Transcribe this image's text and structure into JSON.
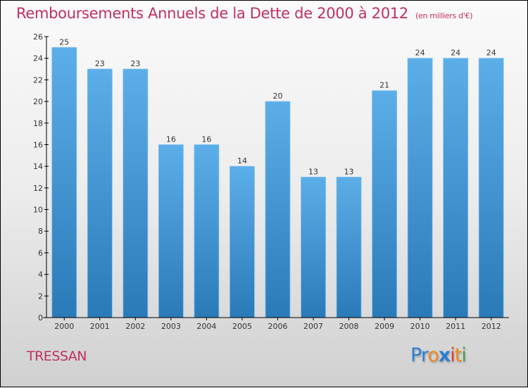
{
  "title": "Remboursements Annuels de la Dette de 2000 à 2012",
  "subtitle": "(en milliers d'€)",
  "city": "TRESSAN",
  "logo": {
    "letters": [
      {
        "ch": "P",
        "color": "#2a7fd4"
      },
      {
        "ch": "r",
        "color": "#2a7fd4"
      },
      {
        "ch": "o",
        "color": "#f08a1c"
      },
      {
        "ch": "x",
        "color": "#2a7fd4"
      },
      {
        "ch": "i",
        "color": "#e53b2c"
      },
      {
        "ch": "t",
        "color": "#f08a1c"
      },
      {
        "ch": "i",
        "color": "#3aa64a"
      }
    ]
  },
  "colors": {
    "bar_top": "#5caee8",
    "bar_bottom": "#2a7ab8",
    "accent": "#c0305e"
  },
  "chart_data": {
    "type": "bar",
    "title": "Remboursements Annuels de la Dette de 2000 à 2012",
    "subtitle": "(en milliers d'€)",
    "categories": [
      "2000",
      "2001",
      "2002",
      "2003",
      "2004",
      "2005",
      "2006",
      "2007",
      "2008",
      "2009",
      "2010",
      "2011",
      "2012"
    ],
    "values": [
      25,
      23,
      23,
      16,
      16,
      14,
      20,
      13,
      13,
      21,
      24,
      24,
      24
    ],
    "xlabel": "",
    "ylabel": "",
    "ylim": [
      0,
      26
    ],
    "yticks": [
      0,
      2,
      4,
      6,
      8,
      10,
      12,
      14,
      16,
      18,
      20,
      22,
      24,
      26
    ],
    "grid": false,
    "legend": "none"
  }
}
